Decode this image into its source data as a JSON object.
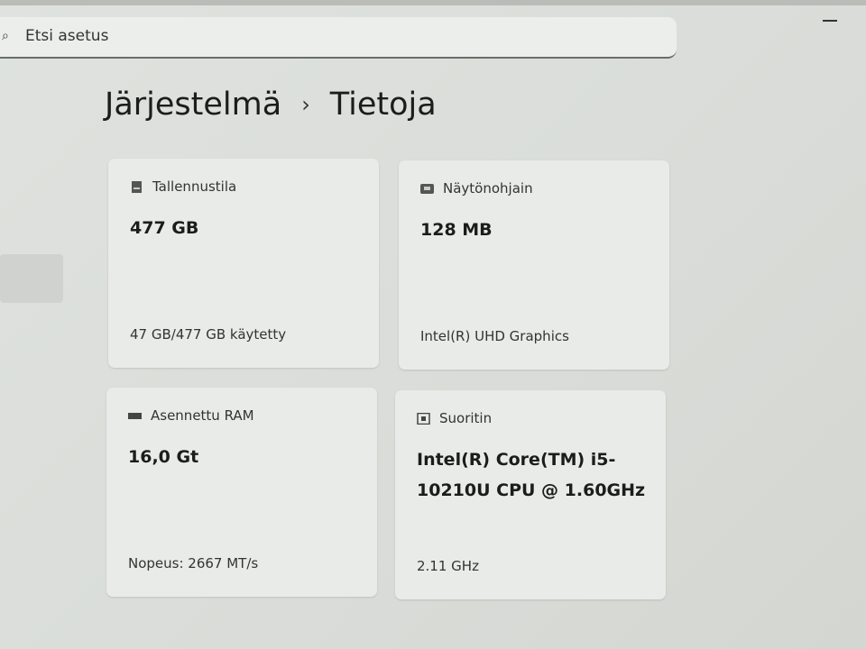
{
  "search": {
    "placeholder": "Etsi asetus"
  },
  "breadcrumb": {
    "parent": "Järjestelmä",
    "separator": "›",
    "current": "Tietoja"
  },
  "cards": [
    {
      "title": "Tallennustila",
      "value": "477 GB",
      "detail": "47 GB/477 GB käytetty",
      "icon": "storage-icon"
    },
    {
      "title": "Näytönohjain",
      "value": "128 MB",
      "detail": "Intel(R) UHD Graphics",
      "icon": "display-adapter-icon"
    },
    {
      "title": "Asennettu RAM",
      "value": "16,0 Gt",
      "detail": "Nopeus: 2667 MT/s",
      "icon": "ram-icon"
    },
    {
      "title": "Suoritin",
      "value": "Intel(R) Core(TM) i5-10210U CPU @ 1.60GHz",
      "detail": "2.11 GHz",
      "icon": "processor-icon"
    }
  ]
}
